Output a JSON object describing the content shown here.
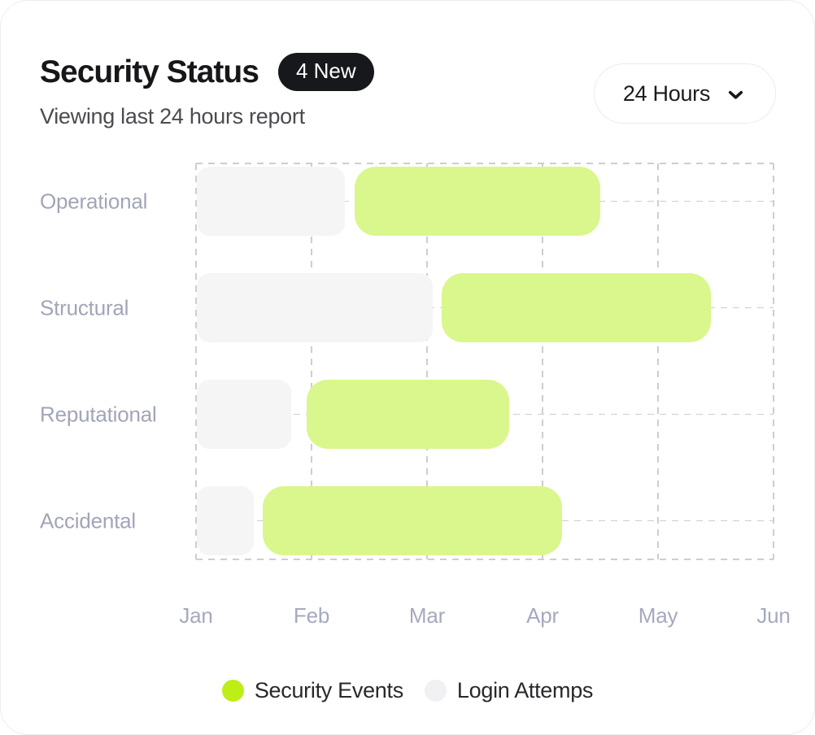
{
  "header": {
    "title": "Security Status",
    "badge": "4 New",
    "subtitle": "Viewing last 24 hours report",
    "period_selector": {
      "value": "24 Hours",
      "icon": "chevron-down-icon"
    }
  },
  "chart_data": {
    "type": "gantt",
    "title": "Security Status",
    "categories": [
      "Operational",
      "Structural",
      "Reputational",
      "Accidental"
    ],
    "x_ticks": [
      "Jan",
      "Feb",
      "Mar",
      "Apr",
      "May",
      "Jun"
    ],
    "x_unit": "month",
    "x_range_months": [
      0,
      5
    ],
    "grid": "dashed",
    "series": [
      {
        "name": "Login Attemps",
        "color": "#f5f5f6"
      },
      {
        "name": "Security Events",
        "color": "#d9f78c"
      }
    ],
    "rows": [
      {
        "category": "Operational",
        "login_attempts_months": [
          0.01,
          1.29
        ],
        "security_events_months": [
          1.37,
          3.5
        ]
      },
      {
        "category": "Structural",
        "login_attempts_months": [
          0.01,
          2.05
        ],
        "security_events_months": [
          2.13,
          4.46
        ]
      },
      {
        "category": "Reputational",
        "login_attempts_months": [
          0.01,
          0.83
        ],
        "security_events_months": [
          0.96,
          2.71
        ]
      },
      {
        "category": "Accidental",
        "login_attempts_months": [
          0.01,
          0.5
        ],
        "security_events_months": [
          0.58,
          3.17
        ]
      }
    ],
    "legend": [
      {
        "label": "Security Events",
        "color": "#bdee17"
      },
      {
        "label": "Login Attemps",
        "color": "#f1f1f3"
      }
    ],
    "legend_position": "bottom-center"
  }
}
